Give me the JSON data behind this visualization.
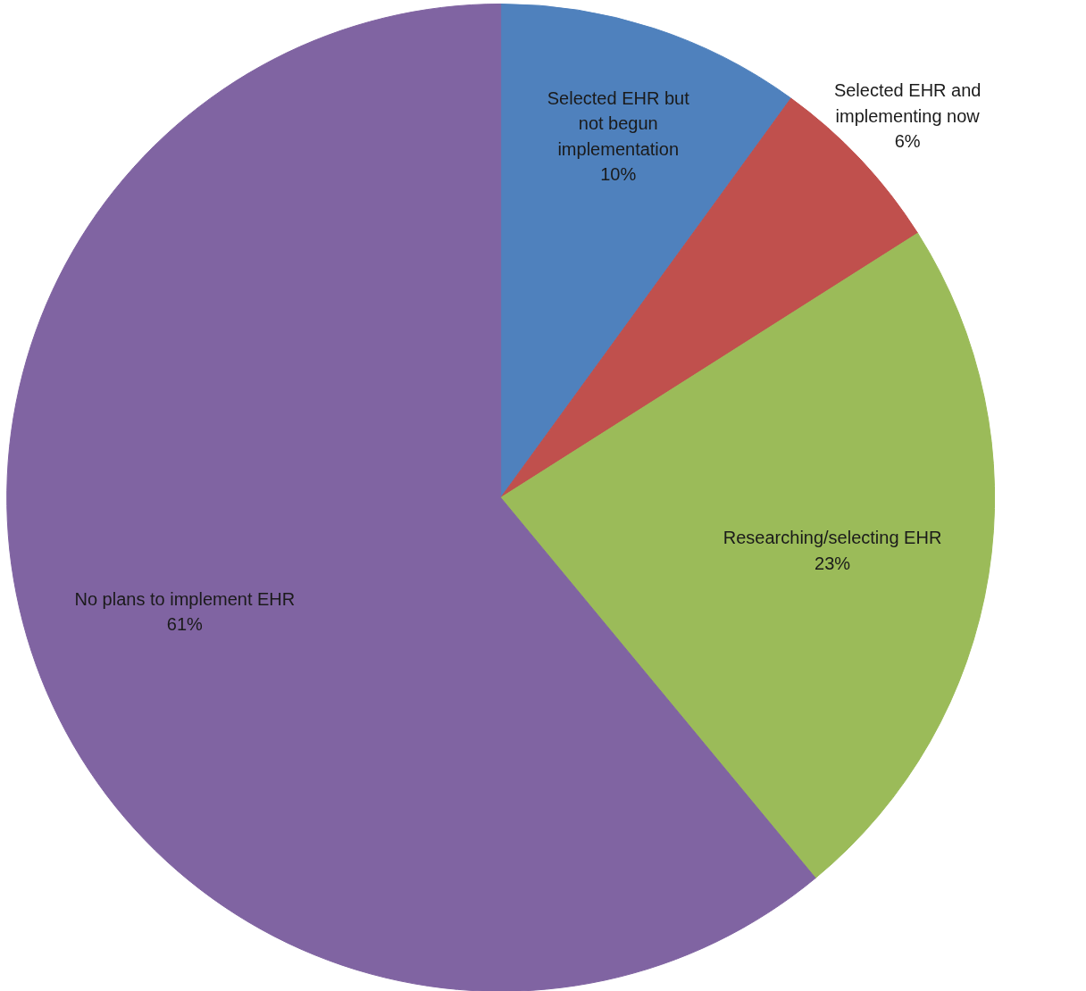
{
  "chart_data": {
    "type": "pie",
    "categories": [
      "Selected EHR but not begun implementation",
      "Selected EHR and implementing now",
      "Researching/selecting EHR",
      "No plans to implement EHR"
    ],
    "values": [
      10,
      6,
      23,
      61
    ],
    "value_labels": [
      "10%",
      "6%",
      "23%",
      "61%"
    ],
    "colors": [
      "#4f81bd",
      "#c0504d",
      "#9bbb59",
      "#8064a2"
    ]
  }
}
